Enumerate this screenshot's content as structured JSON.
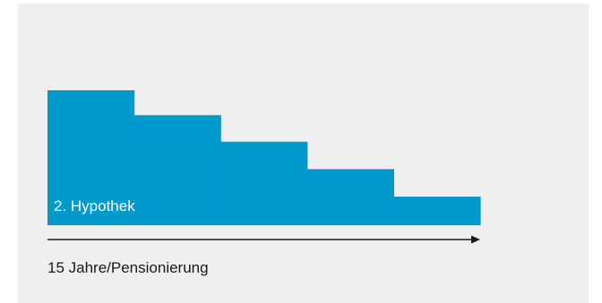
{
  "diagram": {
    "colors": {
      "panel_background": "#efefef",
      "bar_fill": "#0099cc",
      "arrow": "#1a1a1a"
    },
    "bar_label": "2. Hypothek",
    "axis_caption": "15 Jahre/Pensionierung",
    "steps": [
      {
        "relative_height": 1.0
      },
      {
        "relative_height": 0.766
      },
      {
        "relative_height": 0.516
      },
      {
        "relative_height": 0.258
      },
      {
        "relative_height": 0.0
      }
    ]
  }
}
